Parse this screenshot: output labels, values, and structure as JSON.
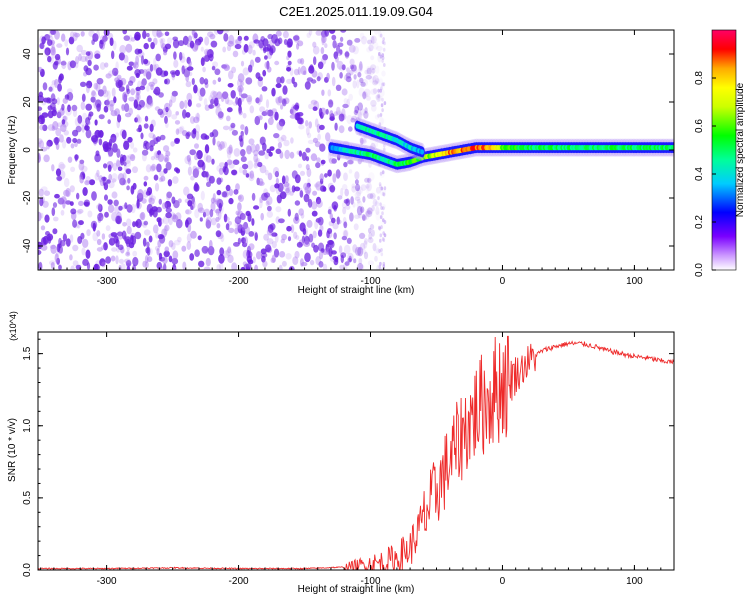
{
  "title": "C2E1.2025.011.19.09.G04",
  "colors": {
    "snr_line": "#ee2a2a",
    "axis": "#000000",
    "noise_dot": "#7a2ee0",
    "background": "#ffffff"
  },
  "chart_data": [
    {
      "type": "heatmap",
      "title": "C2E1.2025.011.19.09.G04",
      "xlabel": "Height of straight line (km)",
      "ylabel": "Frequency (Hz)",
      "xlim": [
        -352,
        130
      ],
      "ylim": [
        -50,
        50
      ],
      "x_ticks": [
        -300,
        -200,
        -100,
        0,
        100
      ],
      "y_ticks": [
        -40,
        -20,
        0,
        20,
        40
      ],
      "grid": false,
      "colorbar": {
        "label": "Normalized spectral amplitude",
        "range": [
          0.0,
          1.0
        ],
        "ticks": [
          0.0,
          0.2,
          0.4,
          0.6,
          0.8
        ],
        "tick_labels": [
          "0.0",
          "0.2",
          "0.4",
          "0.6",
          "0.8"
        ],
        "colormap": "rainbow (violet-blue-cyan-green-yellow-red-magenta)"
      },
      "noise_region": {
        "x_range": [
          -352,
          -110
        ],
        "y_range": [
          -50,
          50
        ],
        "amplitude": 0.15
      },
      "signal_tracks": [
        {
          "name": "",
          "x": [
            -130,
            -120,
            -110,
            -100,
            -90,
            -80,
            -70,
            -60,
            -50,
            -40,
            -30,
            -20,
            -10,
            0,
            20,
            60,
            100,
            130
          ],
          "y": [
            1,
            0,
            -1,
            -2,
            -4,
            -6,
            -5,
            -3,
            -2,
            -1,
            0,
            1,
            1,
            1,
            1,
            1,
            1,
            1
          ],
          "amplitude": [
            0.3,
            0.4,
            0.45,
            0.5,
            0.45,
            0.5,
            0.55,
            0.6,
            0.7,
            0.85,
            0.85,
            0.9,
            0.85,
            0.6,
            0.5,
            0.5,
            0.5,
            0.5
          ]
        },
        {
          "name": "",
          "x": [
            -110,
            -100,
            -90,
            -80,
            -70,
            -60
          ],
          "y": [
            10,
            8,
            6,
            4,
            1,
            -1
          ],
          "amplitude": [
            0.4,
            0.45,
            0.45,
            0.4,
            0.4,
            0.35
          ]
        }
      ]
    },
    {
      "type": "line",
      "title": "",
      "xlabel": "Height of straight line (km)",
      "ylabel": "SNR (10 * v/v)",
      "y_multiplier": "(x10^4)",
      "xlim": [
        -352,
        130
      ],
      "ylim": [
        0.0,
        1.65
      ],
      "x_ticks": [
        -300,
        -200,
        -100,
        0,
        100
      ],
      "y_ticks": [
        0.0,
        0.5,
        1.0,
        1.5
      ],
      "y_tick_labels": [
        "0.0",
        "0.5",
        "1.0",
        "1.5"
      ],
      "grid": false,
      "series": [
        {
          "name": "",
          "x": [
            -352,
            -300,
            -250,
            -200,
            -150,
            -120,
            -100,
            -90,
            -80,
            -70,
            -60,
            -50,
            -40,
            -30,
            -20,
            -10,
            0,
            10,
            20,
            30,
            40,
            50,
            60,
            70,
            80,
            90,
            100,
            110,
            120,
            130
          ],
          "y": [
            0.01,
            0.01,
            0.015,
            0.01,
            0.01,
            0.02,
            0.04,
            0.05,
            0.08,
            0.15,
            0.35,
            0.55,
            0.75,
            0.95,
            1.1,
            1.2,
            1.3,
            1.35,
            1.45,
            1.52,
            1.55,
            1.57,
            1.57,
            1.55,
            1.52,
            1.5,
            1.48,
            1.47,
            1.45,
            1.44
          ]
        }
      ]
    }
  ]
}
